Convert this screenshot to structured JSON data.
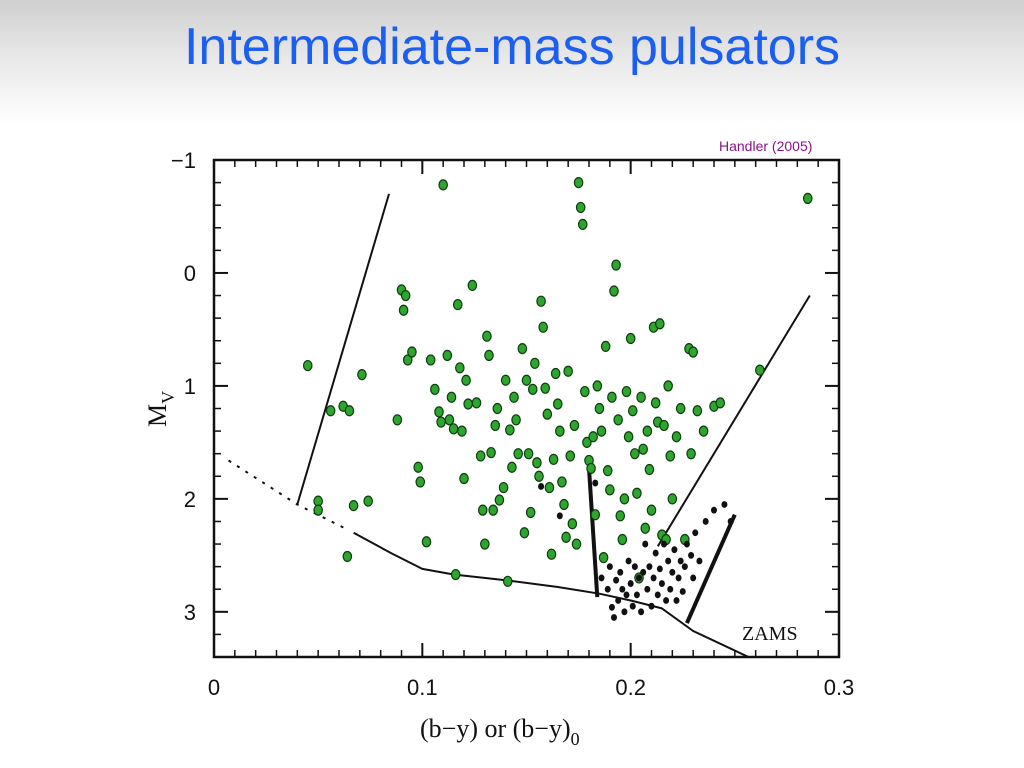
{
  "slide": {
    "title": "Intermediate-mass pulsators",
    "credit": "Handler (2005)"
  },
  "chart_data": {
    "type": "scatter",
    "xlabel": "(b−y) or (b−y)",
    "xlabel_subscript": "0",
    "ylabel": "M",
    "ylabel_subscript": "V",
    "xlim": [
      0,
      0.3
    ],
    "ylim": [
      3.4,
      -1.0
    ],
    "y_inverted": true,
    "x_ticks": [
      0,
      0.1,
      0.2,
      0.3
    ],
    "x_tick_labels": [
      "0",
      "0.1",
      "0.2",
      "0.3"
    ],
    "y_ticks": [
      -1,
      0,
      1,
      2,
      3
    ],
    "y_tick_labels": [
      "−1",
      "0",
      "1",
      "2",
      "3"
    ],
    "annotations": [
      {
        "text": "ZAMS",
        "x": 0.255,
        "y": 3.17
      }
    ],
    "colors": {
      "green": "#2ea52e",
      "green_edge": "#0c3d0c",
      "black": "#111111"
    },
    "lines": [
      {
        "name": "left-boundary",
        "style": "solid",
        "width": 2,
        "points": [
          [
            0.04,
            2.05
          ],
          [
            0.084,
            -0.7
          ]
        ]
      },
      {
        "name": "zams-extension",
        "style": "dotted",
        "width": 2,
        "points": [
          [
            0.007,
            1.66
          ],
          [
            0.04,
            2.05
          ],
          [
            0.065,
            2.28
          ]
        ]
      },
      {
        "name": "zams",
        "style": "solid",
        "width": 2,
        "points": [
          [
            0.067,
            2.3
          ],
          [
            0.085,
            2.48
          ],
          [
            0.1,
            2.62
          ],
          [
            0.115,
            2.67
          ],
          [
            0.14,
            2.72
          ],
          [
            0.165,
            2.78
          ],
          [
            0.185,
            2.84
          ],
          [
            0.2,
            2.9
          ],
          [
            0.215,
            2.97
          ],
          [
            0.23,
            3.17
          ],
          [
            0.26,
            3.43
          ]
        ]
      },
      {
        "name": "right-boundary",
        "style": "solid",
        "width": 2,
        "points": [
          [
            0.213,
            2.42
          ],
          [
            0.286,
            0.2
          ]
        ]
      },
      {
        "name": "gamma-dor-red-edge",
        "style": "solid",
        "width": 4,
        "points": [
          [
            0.227,
            3.1
          ],
          [
            0.25,
            2.14
          ]
        ]
      },
      {
        "name": "gamma-dor-blue-edge",
        "style": "solid",
        "width": 4,
        "points": [
          [
            0.18,
            1.73
          ],
          [
            0.184,
            2.87
          ]
        ]
      }
    ],
    "series": [
      {
        "color": "green",
        "points": [
          [
            0.045,
            0.82
          ],
          [
            0.05,
            2.02
          ],
          [
            0.05,
            2.1
          ],
          [
            0.056,
            1.22
          ],
          [
            0.062,
            1.18
          ],
          [
            0.065,
            1.22
          ],
          [
            0.064,
            2.51
          ],
          [
            0.067,
            2.06
          ],
          [
            0.071,
            0.9
          ],
          [
            0.074,
            2.02
          ],
          [
            0.088,
            1.3
          ],
          [
            0.09,
            0.15
          ],
          [
            0.091,
            0.33
          ],
          [
            0.092,
            0.2
          ],
          [
            0.093,
            0.77
          ],
          [
            0.095,
            0.7
          ],
          [
            0.098,
            1.72
          ],
          [
            0.099,
            1.85
          ],
          [
            0.102,
            2.38
          ],
          [
            0.104,
            0.77
          ],
          [
            0.106,
            1.03
          ],
          [
            0.108,
            1.23
          ],
          [
            0.109,
            1.32
          ],
          [
            0.11,
            -0.78
          ],
          [
            0.112,
            0.73
          ],
          [
            0.113,
            1.3
          ],
          [
            0.114,
            1.1
          ],
          [
            0.115,
            1.38
          ],
          [
            0.116,
            2.67
          ],
          [
            0.117,
            0.28
          ],
          [
            0.118,
            0.84
          ],
          [
            0.119,
            1.4
          ],
          [
            0.12,
            1.82
          ],
          [
            0.121,
            0.95
          ],
          [
            0.122,
            1.16
          ],
          [
            0.124,
            0.11
          ],
          [
            0.126,
            1.15
          ],
          [
            0.128,
            1.62
          ],
          [
            0.129,
            2.1
          ],
          [
            0.13,
            2.4
          ],
          [
            0.131,
            0.56
          ],
          [
            0.132,
            0.73
          ],
          [
            0.133,
            1.59
          ],
          [
            0.134,
            2.1
          ],
          [
            0.135,
            1.35
          ],
          [
            0.136,
            1.2
          ],
          [
            0.137,
            2.01
          ],
          [
            0.139,
            1.9
          ],
          [
            0.14,
            0.95
          ],
          [
            0.141,
            2.73
          ],
          [
            0.142,
            1.39
          ],
          [
            0.143,
            1.72
          ],
          [
            0.144,
            1.1
          ],
          [
            0.145,
            1.3
          ],
          [
            0.146,
            1.6
          ],
          [
            0.148,
            0.67
          ],
          [
            0.149,
            2.3
          ],
          [
            0.15,
            0.95
          ],
          [
            0.151,
            1.6
          ],
          [
            0.152,
            2.12
          ],
          [
            0.153,
            1.03
          ],
          [
            0.154,
            0.8
          ],
          [
            0.155,
            1.68
          ],
          [
            0.156,
            1.8
          ],
          [
            0.157,
            0.25
          ],
          [
            0.158,
            0.48
          ],
          [
            0.159,
            1.02
          ],
          [
            0.16,
            1.25
          ],
          [
            0.161,
            1.9
          ],
          [
            0.162,
            2.49
          ],
          [
            0.163,
            1.65
          ],
          [
            0.164,
            0.89
          ],
          [
            0.165,
            1.16
          ],
          [
            0.166,
            1.4
          ],
          [
            0.167,
            1.85
          ],
          [
            0.168,
            2.05
          ],
          [
            0.169,
            2.34
          ],
          [
            0.17,
            0.87
          ],
          [
            0.171,
            1.62
          ],
          [
            0.172,
            2.22
          ],
          [
            0.173,
            1.35
          ],
          [
            0.174,
            2.4
          ],
          [
            0.175,
            -0.8
          ],
          [
            0.176,
            -0.58
          ],
          [
            0.177,
            -0.43
          ],
          [
            0.178,
            1.05
          ],
          [
            0.179,
            1.5
          ],
          [
            0.18,
            1.66
          ],
          [
            0.181,
            1.73
          ],
          [
            0.182,
            1.45
          ],
          [
            0.183,
            2.14
          ],
          [
            0.184,
            1.0
          ],
          [
            0.185,
            1.2
          ],
          [
            0.186,
            1.4
          ],
          [
            0.187,
            2.52
          ],
          [
            0.188,
            0.65
          ],
          [
            0.189,
            1.75
          ],
          [
            0.19,
            1.92
          ],
          [
            0.191,
            1.1
          ],
          [
            0.192,
            0.16
          ],
          [
            0.193,
            -0.07
          ],
          [
            0.194,
            1.3
          ],
          [
            0.195,
            2.15
          ],
          [
            0.196,
            2.36
          ],
          [
            0.197,
            2.0
          ],
          [
            0.198,
            1.05
          ],
          [
            0.199,
            1.45
          ],
          [
            0.2,
            0.58
          ],
          [
            0.201,
            1.22
          ],
          [
            0.202,
            1.6
          ],
          [
            0.203,
            1.95
          ],
          [
            0.204,
            2.7
          ],
          [
            0.205,
            1.1
          ],
          [
            0.206,
            1.56
          ],
          [
            0.207,
            2.26
          ],
          [
            0.208,
            1.4
          ],
          [
            0.209,
            1.74
          ],
          [
            0.21,
            2.1
          ],
          [
            0.211,
            0.48
          ],
          [
            0.212,
            1.15
          ],
          [
            0.213,
            1.32
          ],
          [
            0.214,
            0.45
          ],
          [
            0.215,
            2.32
          ],
          [
            0.216,
            1.35
          ],
          [
            0.217,
            2.36
          ],
          [
            0.218,
            1.0
          ],
          [
            0.219,
            1.62
          ],
          [
            0.22,
            2.0
          ],
          [
            0.222,
            1.45
          ],
          [
            0.224,
            1.2
          ],
          [
            0.226,
            2.36
          ],
          [
            0.228,
            0.67
          ],
          [
            0.229,
            1.6
          ],
          [
            0.23,
            0.7
          ],
          [
            0.232,
            1.22
          ],
          [
            0.235,
            1.4
          ],
          [
            0.24,
            1.18
          ],
          [
            0.243,
            1.15
          ],
          [
            0.262,
            0.86
          ],
          [
            0.285,
            -0.66
          ]
        ]
      },
      {
        "color": "black",
        "points": [
          [
            0.157,
            1.89
          ],
          [
            0.166,
            2.15
          ],
          [
            0.183,
            1.86
          ],
          [
            0.186,
            2.7
          ],
          [
            0.189,
            2.8
          ],
          [
            0.19,
            2.6
          ],
          [
            0.191,
            2.96
          ],
          [
            0.192,
            3.05
          ],
          [
            0.193,
            2.72
          ],
          [
            0.194,
            2.9
          ],
          [
            0.195,
            2.65
          ],
          [
            0.196,
            2.8
          ],
          [
            0.197,
            3.0
          ],
          [
            0.198,
            2.85
          ],
          [
            0.199,
            2.55
          ],
          [
            0.2,
            2.75
          ],
          [
            0.201,
            2.95
          ],
          [
            0.202,
            2.6
          ],
          [
            0.203,
            2.85
          ],
          [
            0.204,
            2.7
          ],
          [
            0.205,
            3.0
          ],
          [
            0.206,
            2.65
          ],
          [
            0.207,
            2.4
          ],
          [
            0.208,
            2.8
          ],
          [
            0.209,
            2.6
          ],
          [
            0.21,
            2.95
          ],
          [
            0.211,
            2.7
          ],
          [
            0.212,
            2.48
          ],
          [
            0.213,
            2.85
          ],
          [
            0.214,
            2.62
          ],
          [
            0.215,
            2.75
          ],
          [
            0.216,
            2.4
          ],
          [
            0.217,
            2.9
          ],
          [
            0.218,
            2.55
          ],
          [
            0.219,
            2.8
          ],
          [
            0.22,
            2.65
          ],
          [
            0.221,
            2.45
          ],
          [
            0.222,
            2.9
          ],
          [
            0.223,
            2.7
          ],
          [
            0.224,
            2.55
          ],
          [
            0.225,
            2.82
          ],
          [
            0.226,
            2.6
          ],
          [
            0.227,
            2.4
          ],
          [
            0.229,
            2.5
          ],
          [
            0.231,
            2.3
          ],
          [
            0.233,
            2.55
          ],
          [
            0.236,
            2.2
          ],
          [
            0.24,
            2.1
          ],
          [
            0.245,
            2.05
          ],
          [
            0.248,
            2.2
          ],
          [
            0.23,
            2.7
          ]
        ]
      }
    ]
  }
}
